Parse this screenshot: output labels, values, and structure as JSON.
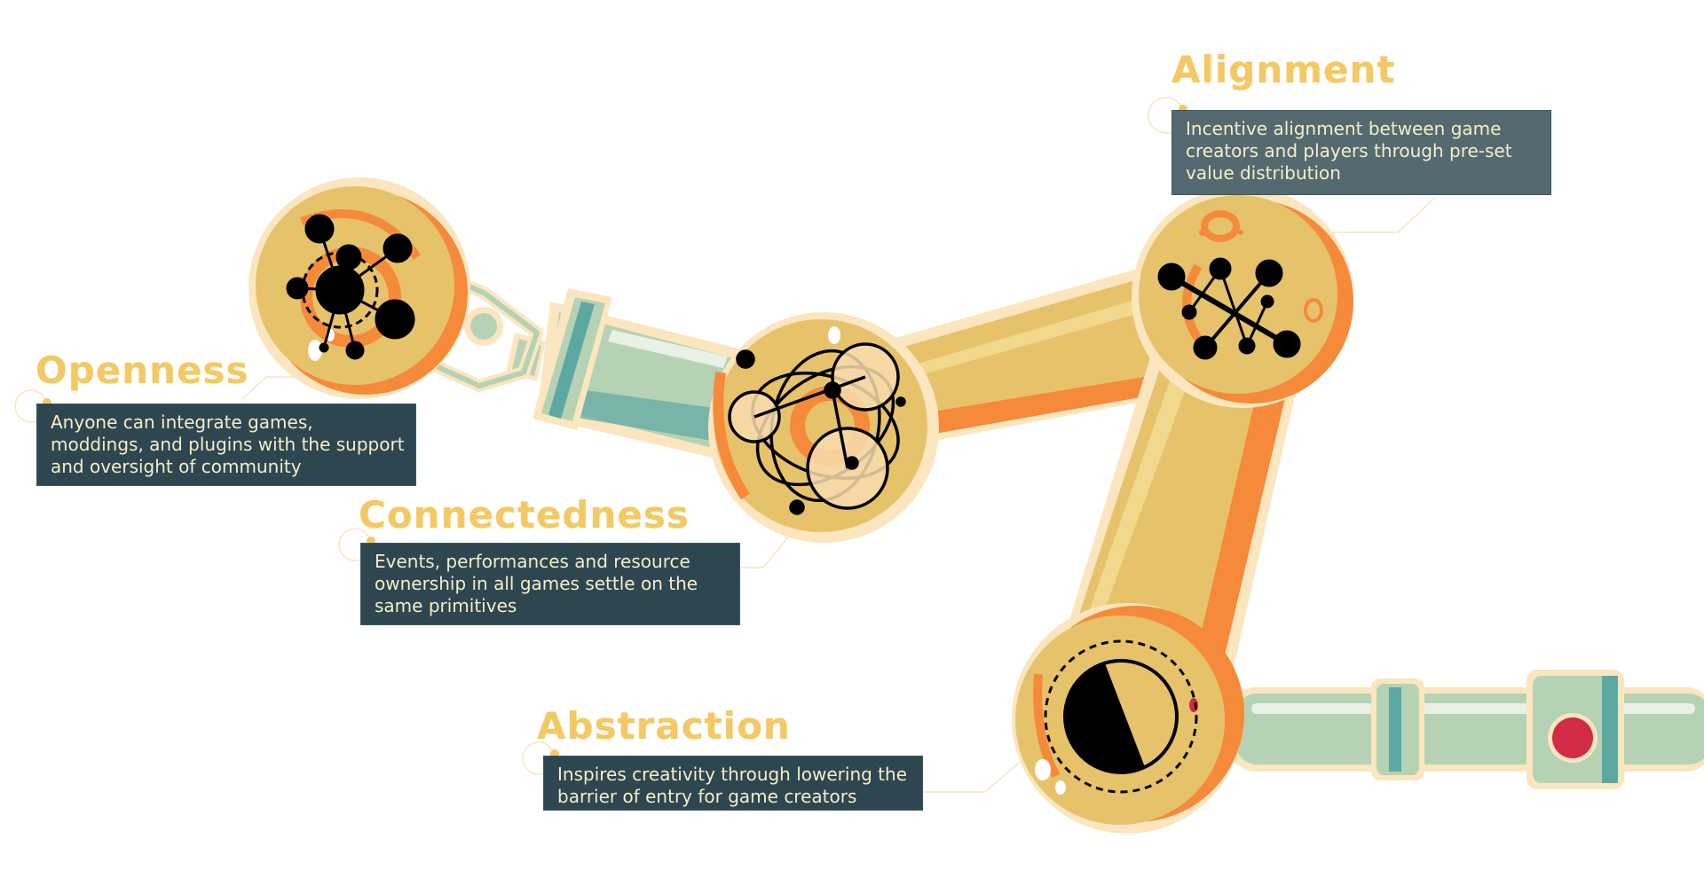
{
  "features": {
    "alignment": {
      "title": "Alignment",
      "description": "Incentive alignment between game creators and players through pre-set value distribution"
    },
    "openness": {
      "title": "Openness",
      "description": "Anyone can integrate games, moddings, and plugins with the support and oversight of community"
    },
    "connectedness": {
      "title": "Connectedness",
      "description": "Events, performances and resource ownership in all games settle on the same primitives"
    },
    "abstraction": {
      "title": "Abstraction",
      "description": "Inspires creativity through lowering the barrier of entry for game creators"
    }
  },
  "colors": {
    "title": "#f3c964",
    "box_dark": "#2e4650",
    "box_light": "#546a70",
    "box_text": "#f5eec8",
    "arm_yellow": "#e6c36b",
    "arm_orange": "#f58a3a",
    "pipe_green": "#b5d3b4",
    "pipe_teal": "#5ea8a2",
    "cream": "#fbe6c0",
    "button_red": "#d12b45"
  },
  "icons": [
    "openness-network-icon",
    "connectedness-orbit-icon",
    "alignment-network-icon",
    "abstraction-dial-icon",
    "red-button-icon"
  ]
}
